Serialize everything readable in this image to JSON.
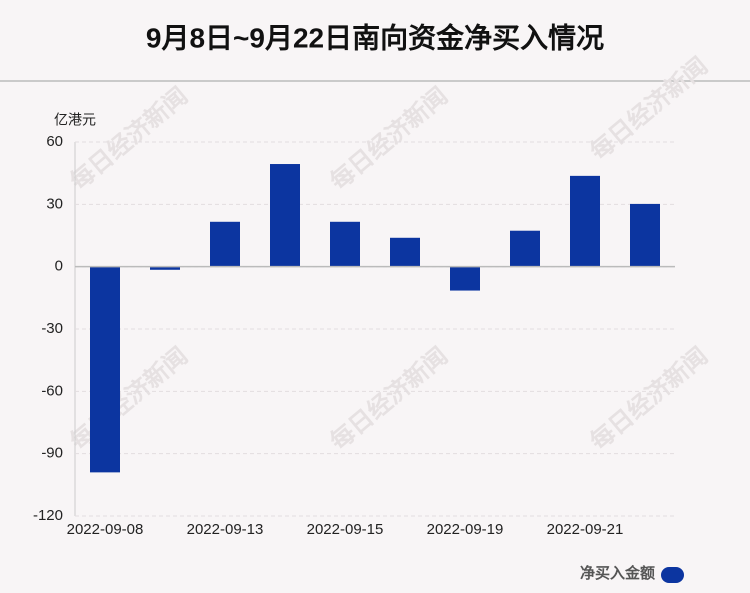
{
  "chart_data": {
    "type": "bar",
    "title": "9月8日~9月22日南向资金净买入情况",
    "y_unit": "亿港元",
    "watermark": "每日经济新闻",
    "categories": [
      "2022-09-08",
      null,
      "2022-09-13",
      null,
      "2022-09-15",
      null,
      "2022-09-19",
      null,
      "2022-09-21",
      null
    ],
    "series": [
      {
        "name": "净买入金额",
        "color": "#0c35a0",
        "values": [
          -99,
          -1.5,
          21.6,
          49.4,
          21.6,
          13.9,
          -11.5,
          17.3,
          43.7,
          30.2
        ]
      }
    ],
    "ylim": [
      -120,
      60
    ],
    "yticks": [
      -120,
      -90,
      -60,
      -30,
      0,
      30,
      60
    ],
    "grid": true
  }
}
